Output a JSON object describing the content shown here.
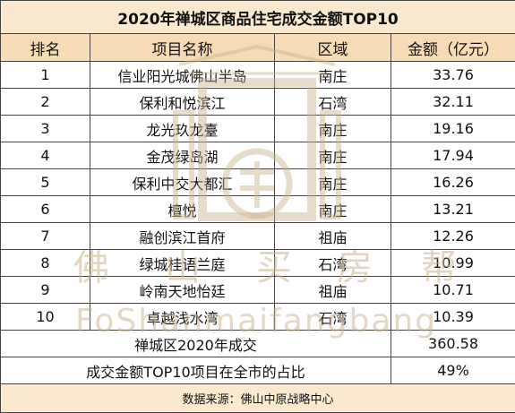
{
  "title": "2020年禅城区商品住宅成交金额TOP10",
  "columns": [
    "排名",
    "项目名称",
    "区域",
    "金额（亿元）"
  ],
  "rows": [
    {
      "rank": "1",
      "name": "信业阳光城佛山半岛",
      "area": "南庄",
      "amount": "33.76"
    },
    {
      "rank": "2",
      "name": "保利和悦滨江",
      "area": "石湾",
      "amount": "32.11"
    },
    {
      "rank": "3",
      "name": "龙光玖龙臺",
      "area": "南庄",
      "amount": "19.16"
    },
    {
      "rank": "4",
      "name": "金茂绿岛湖",
      "area": "南庄",
      "amount": "17.94"
    },
    {
      "rank": "5",
      "name": "保利中交大都汇",
      "area": "南庄",
      "amount": "16.26"
    },
    {
      "rank": "6",
      "name": "檀悦",
      "area": "南庄",
      "amount": "13.21"
    },
    {
      "rank": "7",
      "name": "融创滨江首府",
      "area": "祖庙",
      "amount": "12.26"
    },
    {
      "rank": "8",
      "name": "绿城桂语兰庭",
      "area": "石湾",
      "amount": "10.99"
    },
    {
      "rank": "9",
      "name": "岭南天地怡廷",
      "area": "祖庙",
      "amount": "10.71"
    },
    {
      "rank": "10",
      "name": "卓越浅水湾",
      "area": "石湾",
      "amount": "10.39"
    }
  ],
  "summary": [
    {
      "label": "禅城区2020年成交",
      "value": "360.58"
    },
    {
      "label": "成交金额TOP10项目在全市的占比",
      "value": "49%"
    }
  ],
  "source": "数据来源：佛山中原战略中心",
  "watermark": {
    "chars": [
      "佛",
      "山",
      "买",
      "房",
      "帮"
    ],
    "latin": "FoShanmaifangbang",
    "color": "#c9b28a"
  }
}
